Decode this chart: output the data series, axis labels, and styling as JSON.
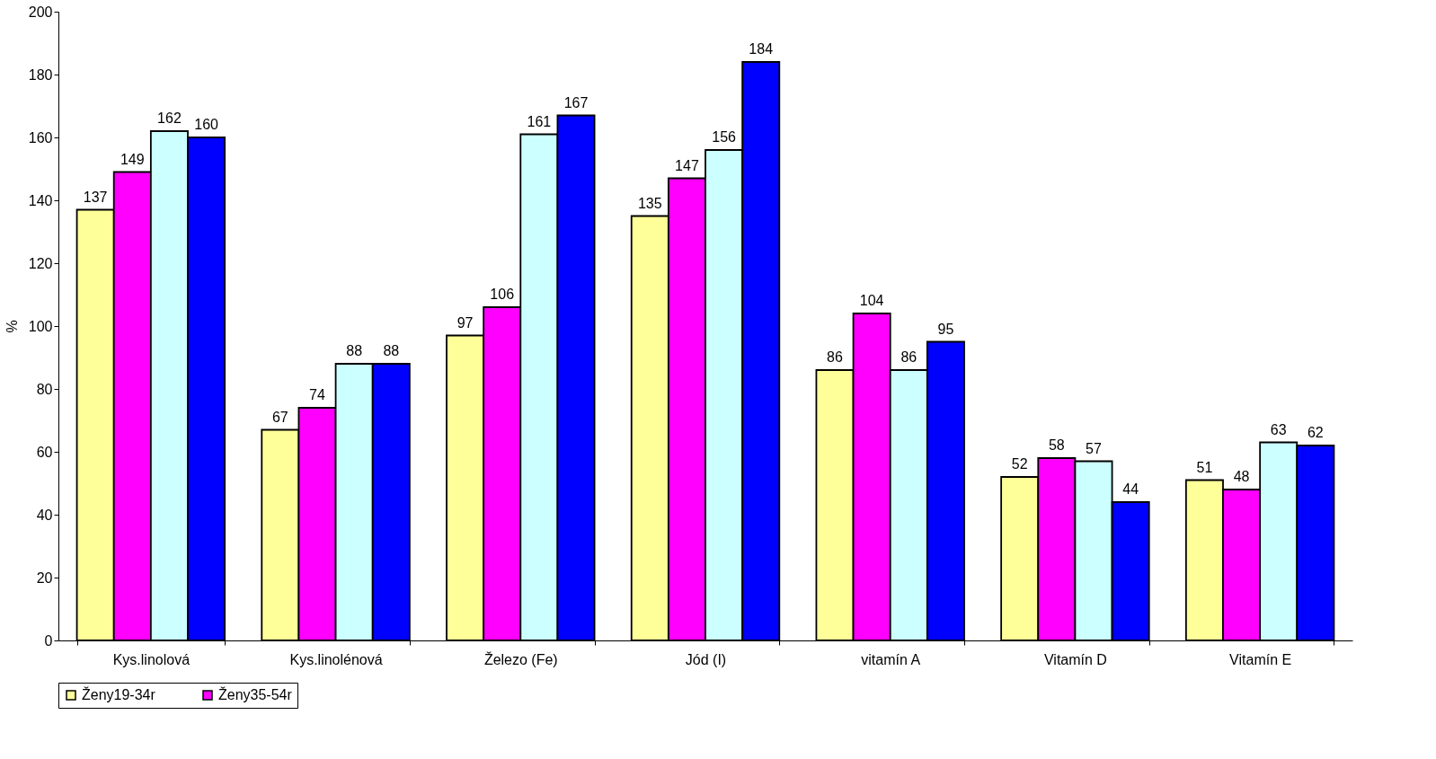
{
  "chart_data": {
    "type": "bar",
    "ylabel": "%",
    "categories": [
      "Kys.linolová",
      "Kys.linolénová",
      "Železo (Fe)",
      "Jód (I)",
      "vitamín A",
      "Vitamín D",
      "Vitamín E"
    ],
    "series": [
      {
        "name": "Ženy19-34r",
        "color": "#ffff99",
        "values": [
          137,
          67,
          97,
          135,
          86,
          52,
          51
        ]
      },
      {
        "name": "Ženy35-54r",
        "color": "#ff00ff",
        "values": [
          149,
          74,
          106,
          147,
          104,
          58,
          48
        ]
      },
      {
        "color": "#ccffff",
        "values": [
          162,
          88,
          161,
          156,
          86,
          57,
          63
        ]
      },
      {
        "color": "#0000ff",
        "values": [
          160,
          88,
          167,
          184,
          95,
          44,
          62
        ]
      }
    ],
    "ylim": [
      0,
      200
    ],
    "yticks": [
      0,
      20,
      40,
      60,
      80,
      100,
      120,
      140,
      160,
      180,
      200
    ],
    "data_labels": true,
    "grid": false,
    "legend": "bottom"
  }
}
